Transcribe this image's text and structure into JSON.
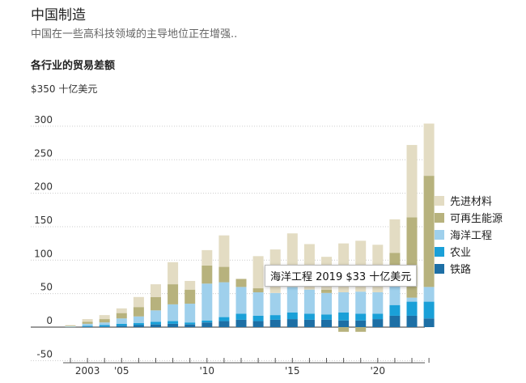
{
  "header": {
    "title": "中国制造",
    "subtitle": "中国在一些高科技领域的主导地位正在增强..",
    "section": "各行业的贸易差额",
    "unit_label": "$350 十亿美元"
  },
  "tooltip": {
    "text": "海洋工程 2019 $33 十亿美元"
  },
  "chart_data": {
    "type": "bar",
    "stacked": true,
    "x": [
      2002,
      2003,
      2004,
      2005,
      2006,
      2007,
      2008,
      2009,
      2010,
      2011,
      2012,
      2013,
      2014,
      2015,
      2016,
      2017,
      2018,
      2019,
      2020,
      2021,
      2022,
      2023
    ],
    "x_tick_labels": [
      {
        "x": 2003,
        "label": "2003"
      },
      {
        "x": 2005,
        "label": "'05"
      },
      {
        "x": 2010,
        "label": "'10"
      },
      {
        "x": 2015,
        "label": "'15"
      },
      {
        "x": 2020,
        "label": "'20"
      }
    ],
    "y_ticks": [
      -50,
      0,
      50,
      100,
      150,
      200,
      250,
      300
    ],
    "ylim": [
      -55,
      350
    ],
    "grid": true,
    "legend_position": "right",
    "series": [
      {
        "name": "铁路",
        "color": "#1d6fa5",
        "values": [
          0,
          1,
          1,
          2,
          3,
          4,
          5,
          4,
          7,
          9,
          11,
          9,
          11,
          12,
          11,
          11,
          10,
          10,
          12,
          17,
          17,
          13
        ]
      },
      {
        "name": "农业",
        "color": "#1aa0d8",
        "values": [
          0,
          1,
          2,
          3,
          3,
          4,
          4,
          3,
          3,
          6,
          9,
          8,
          7,
          10,
          9,
          8,
          12,
          10,
          8,
          16,
          21,
          25
        ]
      },
      {
        "name": "海洋工程",
        "color": "#9fd0ec",
        "values": [
          1,
          3,
          4,
          8,
          10,
          17,
          25,
          28,
          55,
          52,
          40,
          35,
          33,
          38,
          36,
          32,
          30,
          33,
          32,
          28,
          6,
          22
        ]
      },
      {
        "name": "可再生能源",
        "color": "#b7b27d",
        "values": [
          1,
          3,
          5,
          8,
          14,
          20,
          30,
          21,
          27,
          23,
          12,
          6,
          0,
          0,
          0,
          5,
          -7,
          -7,
          0,
          50,
          120,
          166
        ]
      },
      {
        "name": "先进材料",
        "color": "#e3dcc3",
        "values": [
          1,
          4,
          6,
          7,
          15,
          19,
          33,
          13,
          23,
          47,
          0,
          48,
          65,
          80,
          68,
          49,
          73,
          76,
          71,
          50,
          108,
          78
        ]
      }
    ]
  }
}
